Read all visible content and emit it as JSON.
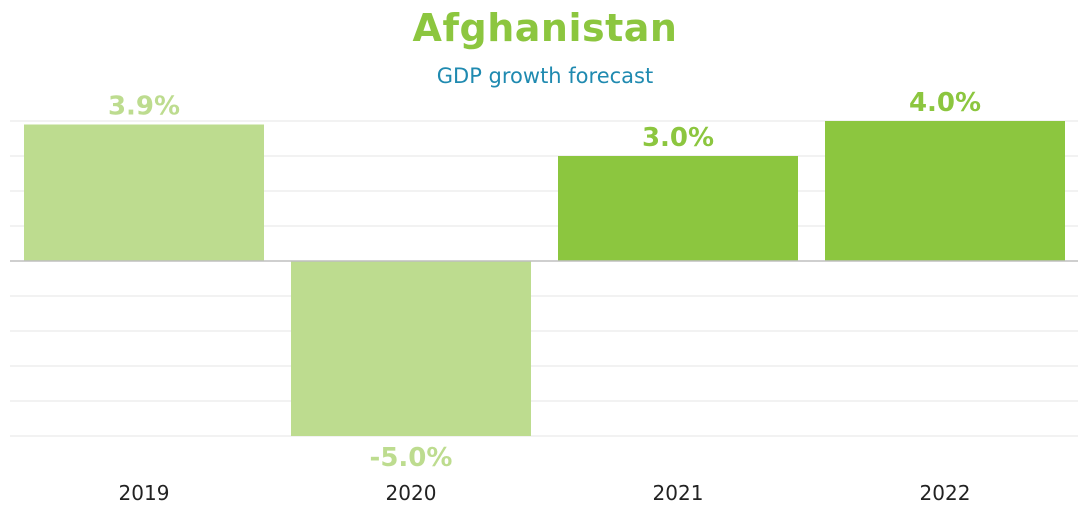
{
  "colors": {
    "title": "#8cc63f",
    "subtitle": "#1f8ab0",
    "bar_actual": "#bddc8f",
    "bar_forecast": "#8cc63f",
    "label_actual": "#bddc8f",
    "label_forecast": "#8cc63f",
    "gridline": "#e6e6e6",
    "baseline": "#bfbfbf",
    "tick_text": "#222222"
  },
  "chart_data": {
    "type": "bar",
    "title": "Afghanistan",
    "subtitle": "GDP growth forecast",
    "categories": [
      "2019",
      "2020",
      "2021",
      "2022"
    ],
    "values": [
      3.9,
      -5.0,
      3.0,
      4.0
    ],
    "data_labels": [
      "3.9%",
      "-5.0%",
      "3.0%",
      "4.0%"
    ],
    "bar_styles": [
      "actual",
      "actual",
      "forecast",
      "forecast"
    ],
    "ylim": [
      -5,
      4
    ],
    "grid": true,
    "legend": false,
    "xlabel": "",
    "ylabel": ""
  }
}
